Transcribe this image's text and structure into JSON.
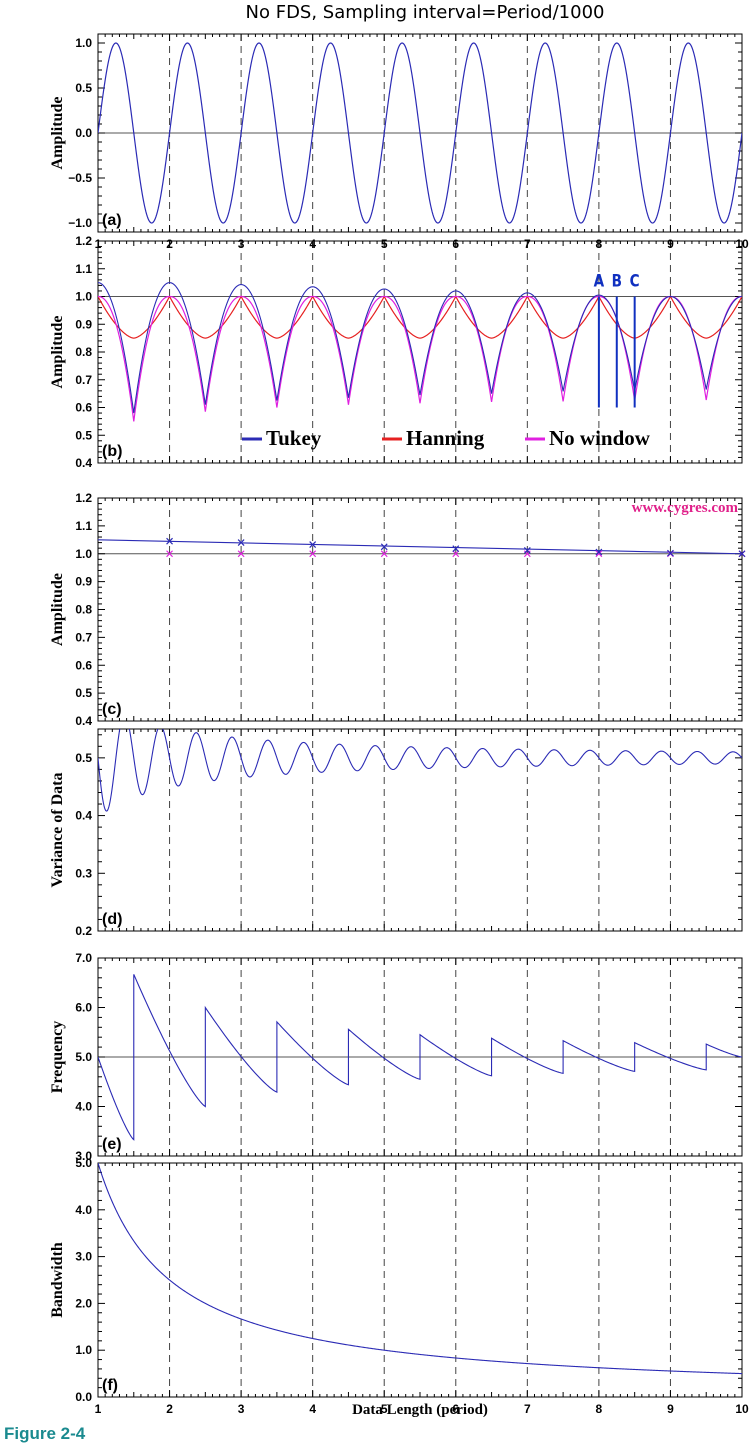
{
  "figure": {
    "title": "No FDS, Sampling interval=Period/1000",
    "xlabel": "Data Length (period)",
    "caption": "Figure 2-4",
    "watermark": "www.cygres.com",
    "colors": {
      "tukey": "#2b2bb5",
      "hanning": "#e62020",
      "nowindow": "#e020e0",
      "axis": "#000000",
      "marker_text": "#1030c0",
      "watermark": "#e0208a",
      "caption": "#1a8a8f"
    }
  },
  "chart_data": [
    {
      "panel": "a",
      "tag": "(a)",
      "type": "line",
      "ylabel": "Amplitude",
      "xlim": [
        1,
        10
      ],
      "ylim": [
        -1.1,
        1.1
      ],
      "yticks": [
        -1.0,
        -0.5,
        0.0,
        0.5,
        1.0
      ],
      "ytick_labels": [
        "−1.0",
        "−0.5",
        "0.0",
        "0.5",
        "1.0"
      ],
      "xticks": [
        1,
        2,
        3,
        4,
        5,
        6,
        7,
        8,
        9,
        10
      ],
      "xtick_labels": [
        "1",
        "2",
        "3",
        "4",
        "5",
        "6",
        "7",
        "8",
        "9",
        "10"
      ],
      "hline": 0,
      "vlines": [
        2,
        3,
        4,
        5,
        6,
        7,
        8,
        9
      ],
      "series": [
        {
          "key": "tukey",
          "function": "sin(2*pi*(x-1))",
          "amplitude": 1.0,
          "period": 1
        }
      ]
    },
    {
      "panel": "b",
      "tag": "(b)",
      "type": "line",
      "ylabel": "Amplitude",
      "xlim": [
        1,
        10
      ],
      "ylim": [
        0.4,
        1.2
      ],
      "yticks": [
        0.4,
        0.5,
        0.6,
        0.7,
        0.8,
        0.9,
        1.0,
        1.1,
        1.2
      ],
      "ytick_labels": [
        "0.4",
        "0.5",
        "0.6",
        "0.7",
        "0.8",
        "0.9",
        "1.0",
        "1.1",
        "1.2"
      ],
      "xticks": [
        1,
        2,
        3,
        4,
        5,
        6,
        7,
        8,
        9,
        10
      ],
      "hline": 1.0,
      "vlines": [
        2,
        3,
        4,
        5,
        6,
        7,
        8,
        9
      ],
      "legend": [
        {
          "key": "tukey",
          "label": "Tukey"
        },
        {
          "key": "hanning",
          "label": "Hanning"
        },
        {
          "key": "nowindow",
          "label": "No window"
        }
      ],
      "markers": [
        {
          "label": "A",
          "x": 8.0
        },
        {
          "label": "B",
          "x": 8.25
        },
        {
          "label": "C",
          "x": 8.5
        }
      ],
      "marker_y_range": [
        0.6,
        1.0
      ],
      "series": [
        {
          "key": "hanning",
          "peaks_at_integers": 1.0,
          "minima_at_half_integers": 0.85
        },
        {
          "key": "nowindow",
          "peak_values": [
            1.0,
            1.0,
            1.0,
            1.0,
            1.0,
            1.0,
            1.0,
            1.0,
            1.0,
            1.0
          ],
          "min_values": [
            0.55,
            0.585,
            0.6,
            0.61,
            0.615,
            0.62,
            0.622,
            0.625,
            0.627
          ]
        },
        {
          "key": "tukey",
          "peak_values": [
            1.05,
            1.05,
            1.043,
            1.035,
            1.027,
            1.02,
            1.013,
            1.005,
            1.0,
            1.0
          ],
          "min_values": [
            0.58,
            0.61,
            0.625,
            0.635,
            0.645,
            0.65,
            0.658,
            0.66,
            0.665
          ]
        }
      ]
    },
    {
      "panel": "c",
      "tag": "(c)",
      "type": "scatter",
      "ylabel": "Amplitude",
      "xlim": [
        1,
        10
      ],
      "ylim": [
        0.4,
        1.2
      ],
      "yticks": [
        0.4,
        0.5,
        0.6,
        0.7,
        0.8,
        0.9,
        1.0,
        1.1,
        1.2
      ],
      "ytick_labels": [
        "0.4",
        "0.5",
        "0.6",
        "0.7",
        "0.8",
        "0.9",
        "1.0",
        "1.1",
        "1.2"
      ],
      "xticks": [
        1,
        2,
        3,
        4,
        5,
        6,
        7,
        8,
        9,
        10
      ],
      "hline": 1.0,
      "vlines": [
        2,
        3,
        4,
        5,
        6,
        7,
        8,
        9
      ],
      "series": [
        {
          "key": "tukey",
          "x": [
            2,
            3,
            4,
            5,
            6,
            7,
            8,
            9,
            10
          ],
          "y": [
            1.045,
            1.04,
            1.033,
            1.025,
            1.018,
            1.012,
            1.006,
            1.002,
            1.0
          ],
          "line": {
            "x": [
              1,
              10
            ],
            "y": [
              1.05,
              1.0
            ]
          }
        },
        {
          "key": "nowindow",
          "x": [
            2,
            3,
            4,
            5,
            6,
            7,
            8,
            9,
            10
          ],
          "y": [
            1.0,
            1.0,
            1.0,
            1.0,
            1.0,
            1.0,
            1.0,
            1.0,
            1.0
          ]
        }
      ]
    },
    {
      "panel": "d",
      "tag": "(d)",
      "type": "line",
      "ylabel": "Variance of Data",
      "xlim": [
        1,
        10
      ],
      "ylim": [
        0.2,
        0.55
      ],
      "yticks": [
        0.2,
        0.3,
        0.4,
        0.5
      ],
      "ytick_labels": [
        "0.2",
        "0.3",
        "0.4",
        "0.5"
      ],
      "xticks": [
        1,
        2,
        3,
        4,
        5,
        6,
        7,
        8,
        9,
        10
      ],
      "vlines": [
        2,
        3,
        4,
        5,
        6,
        7,
        8,
        9
      ],
      "series": [
        {
          "key": "tukey",
          "function": "0.5 - sin(4*pi*(x-1))/(8*pi*x)",
          "mean": 0.5
        }
      ]
    },
    {
      "panel": "e",
      "tag": "(e)",
      "type": "line",
      "ylabel": "Frequency",
      "xlim": [
        1,
        10
      ],
      "ylim": [
        3.0,
        7.0
      ],
      "yticks": [
        3.0,
        4.0,
        5.0,
        6.0,
        7.0
      ],
      "ytick_labels": [
        "3.0",
        "4.0",
        "5.0",
        "6.0",
        "7.0"
      ],
      "xticks": [
        1,
        2,
        3,
        4,
        5,
        6,
        7,
        8,
        9,
        10
      ],
      "hline": 5.0,
      "vlines": [
        2,
        3,
        4,
        5,
        6,
        7,
        8,
        9
      ],
      "series": [
        {
          "key": "tukey",
          "description": "sawtooth",
          "jump_x": [
            1.5,
            2.5,
            3.5,
            4.5,
            5.5,
            6.5,
            7.5,
            8.5,
            9.5
          ],
          "low_values": [
            3.33,
            4.0,
            4.29,
            4.44,
            4.55,
            4.62,
            4.67,
            4.71,
            4.74
          ],
          "high_values": [
            6.67,
            6.0,
            5.71,
            5.56,
            5.45,
            5.38,
            5.33,
            5.29,
            5.26
          ]
        }
      ]
    },
    {
      "panel": "f",
      "tag": "(f)",
      "type": "line",
      "ylabel": "Bandwidth",
      "xlabel": "Data Length (period)",
      "xlim": [
        1,
        10
      ],
      "ylim": [
        0.0,
        5.0
      ],
      "yticks": [
        0.0,
        1.0,
        2.0,
        3.0,
        4.0,
        5.0
      ],
      "ytick_labels": [
        "0.0",
        "1.0",
        "2.0",
        "3.0",
        "4.0",
        "5.0"
      ],
      "xticks": [
        1,
        2,
        3,
        4,
        5,
        6,
        7,
        8,
        9,
        10
      ],
      "xtick_labels": [
        "1",
        "2",
        "3",
        "4",
        "5",
        "6",
        "7",
        "8",
        "9",
        "10"
      ],
      "vlines": [
        2,
        3,
        4,
        5,
        6,
        7,
        8,
        9
      ],
      "series": [
        {
          "key": "tukey",
          "function": "5/x",
          "x": [
            1,
            2,
            3,
            4,
            5,
            6,
            7,
            8,
            9,
            10
          ],
          "y": [
            5.0,
            2.5,
            1.667,
            1.25,
            1.0,
            0.833,
            0.714,
            0.625,
            0.556,
            0.5
          ]
        }
      ]
    }
  ]
}
